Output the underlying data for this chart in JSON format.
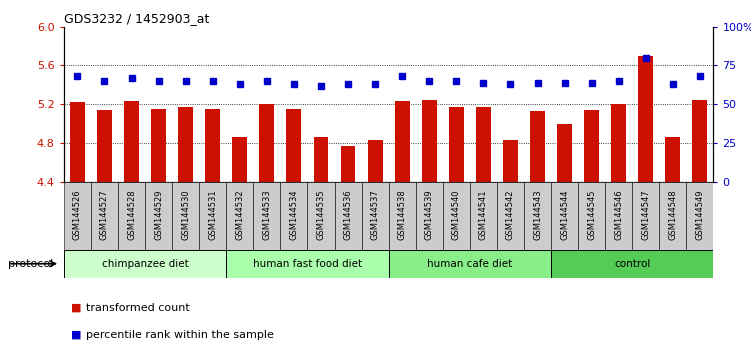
{
  "title": "GDS3232 / 1452903_at",
  "samples": [
    "GSM144526",
    "GSM144527",
    "GSM144528",
    "GSM144529",
    "GSM144530",
    "GSM144531",
    "GSM144532",
    "GSM144533",
    "GSM144534",
    "GSM144535",
    "GSM144536",
    "GSM144537",
    "GSM144538",
    "GSM144539",
    "GSM144540",
    "GSM144541",
    "GSM144542",
    "GSM144543",
    "GSM144544",
    "GSM144545",
    "GSM144546",
    "GSM144547",
    "GSM144548",
    "GSM144549"
  ],
  "bar_values": [
    5.23,
    5.14,
    5.24,
    5.15,
    5.17,
    5.15,
    4.87,
    5.2,
    5.15,
    4.87,
    4.77,
    4.83,
    5.24,
    5.25,
    5.17,
    5.17,
    4.83,
    5.13,
    5.0,
    5.14,
    5.2,
    5.7,
    4.87,
    5.25
  ],
  "dot_values": [
    68,
    65,
    67,
    65,
    65,
    65,
    63,
    65,
    63,
    62,
    63,
    63,
    68,
    65,
    65,
    64,
    63,
    64,
    64,
    64,
    65,
    80,
    63,
    68
  ],
  "groups": [
    {
      "label": "chimpanzee diet",
      "start": 0,
      "end": 6,
      "color": "#ccffcc"
    },
    {
      "label": "human fast food diet",
      "start": 6,
      "end": 12,
      "color": "#aaffaa"
    },
    {
      "label": "human cafe diet",
      "start": 12,
      "end": 18,
      "color": "#88ee88"
    },
    {
      "label": "control",
      "start": 18,
      "end": 24,
      "color": "#55cc55"
    }
  ],
  "bar_color": "#cc1100",
  "dot_color": "#0000cc",
  "ylim_left": [
    4.4,
    6.0
  ],
  "ylim_right": [
    0,
    100
  ],
  "yticks_left": [
    4.4,
    4.8,
    5.2,
    5.6,
    6.0
  ],
  "yticks_right": [
    0,
    25,
    50,
    75,
    100
  ],
  "grid_values": [
    4.8,
    5.2,
    5.6
  ],
  "legend_items": [
    {
      "label": "transformed count",
      "color": "#cc1100"
    },
    {
      "label": "percentile rank within the sample",
      "color": "#0000cc"
    }
  ],
  "protocol_label": "protocol",
  "bg_color": "#ffffff",
  "tick_label_color_left": "#cc1100",
  "tick_label_color_right": "#0000cc",
  "xtick_bg_color": "#cccccc"
}
